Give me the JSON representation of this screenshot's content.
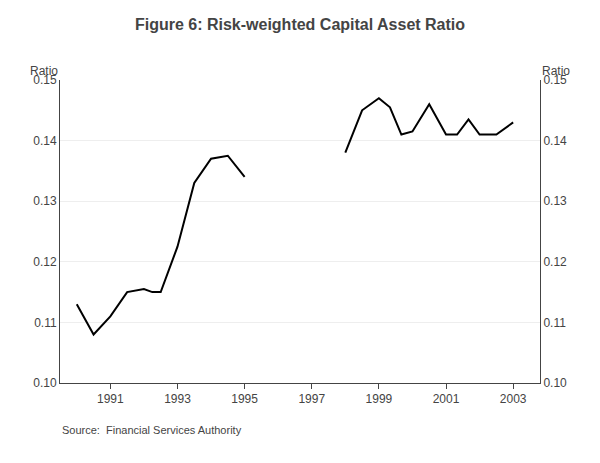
{
  "chart_data": {
    "type": "line",
    "title": "Figure 6: Risk-weighted Capital Asset Ratio",
    "ylabel": "Ratio",
    "y2label": "Ratio",
    "annotations": [
      "Source:",
      "Financial Services Authority"
    ],
    "x": [
      1990,
      1990.5,
      1991,
      1991.5,
      1992,
      1992.25,
      1992.5,
      1993,
      1993.5,
      1994,
      1994.5,
      1995,
      null,
      1998,
      1998.5,
      1999,
      1999.33,
      1999.67,
      2000,
      2000.5,
      2001,
      2001.33,
      2001.67,
      2002,
      2002.5,
      2003
    ],
    "values": [
      0.113,
      0.108,
      0.111,
      0.115,
      0.1155,
      0.115,
      0.115,
      0.1225,
      0.133,
      0.137,
      0.1375,
      0.134,
      null,
      0.138,
      0.145,
      0.147,
      0.1455,
      0.141,
      0.1415,
      0.146,
      0.141,
      0.141,
      0.1435,
      0.141,
      0.141,
      0.143
    ],
    "color": "#000000",
    "xlim": [
      1989.5,
      2003.8
    ],
    "xticks": [
      1991,
      1993,
      1995,
      1997,
      1999,
      2001,
      2003
    ],
    "ylim": [
      0.1,
      0.15
    ],
    "yticks": [
      {
        "value": 0.1,
        "label": "0.10"
      },
      0.11,
      0.12,
      0.13,
      0.14,
      0.15
    ],
    "y2lim": [
      0.1,
      0.15
    ],
    "y2ticks": [
      {
        "value": 0.1,
        "label": "0.10"
      },
      0.11,
      0.12,
      0.13,
      0.14,
      0.15
    ],
    "grid": true
  }
}
